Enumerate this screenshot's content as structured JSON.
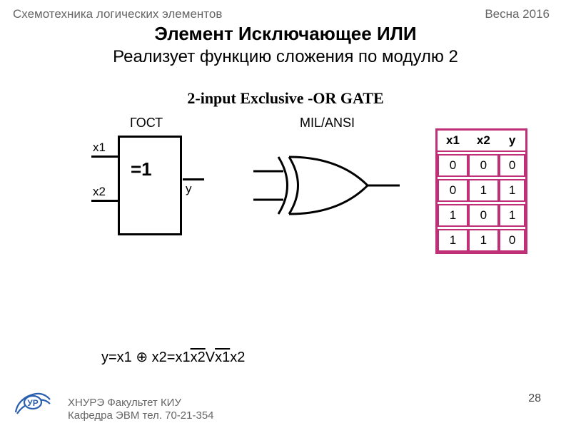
{
  "header": {
    "left": "Схемотехника логических элементов",
    "right": "Весна 2016"
  },
  "title": "Элемент Исключающее ИЛИ",
  "subtitle": "Реализует функцию сложения по модулю 2",
  "gate_title": "2-input Exclusive -OR GATE",
  "gost": {
    "label": "ГОСТ",
    "symbol": "=1",
    "x1": "x1",
    "x2": "x2",
    "y": "y",
    "border_color": "#000000",
    "line_width": 3
  },
  "ansi": {
    "label": "MIL/ANSI",
    "stroke": "#000000",
    "stroke_width": 3
  },
  "truth_table": {
    "border_color": "#c03078",
    "headers": [
      "x1",
      "x2",
      "y"
    ],
    "rows": [
      [
        "0",
        "0",
        "0"
      ],
      [
        "0",
        "1",
        "1"
      ],
      [
        "1",
        "0",
        "1"
      ],
      [
        "1",
        "1",
        "0"
      ]
    ]
  },
  "formula": {
    "prefix": "y=x1 ⊕ x2=x1",
    "ov1": "x2",
    "mid": "V",
    "ov2": "x1",
    "suffix": "x2"
  },
  "footer": {
    "line1": "ХНУРЭ Факультет КИУ",
    "line2": "Кафедра ЭВМ   тел. 70-21-354",
    "page": "28"
  },
  "logo": {
    "fill": "#2a5fb0",
    "stroke": "#2a5fb0"
  }
}
